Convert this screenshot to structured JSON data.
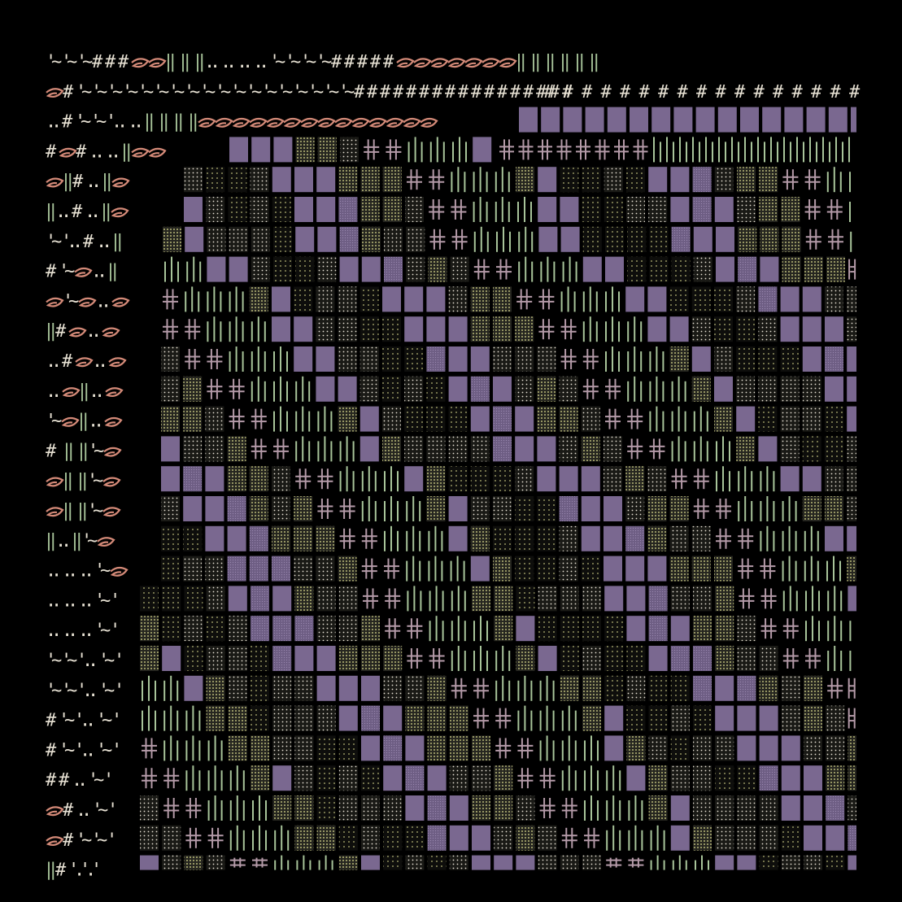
{
  "artwork": {
    "background": "#000000",
    "palette": {
      "cream": "#e8e2d4",
      "salmon": "#d48a78",
      "sage": "#a8c49a",
      "violet": "#7a6890",
      "mauve": "#b49aa8",
      "olive": "#b8b878"
    },
    "glyph_rows": [
      "'~'~'~###ⓔⓔ‖ ‖ ‖.. .. .. .. '~'~'~'~#####ⓔⓔⓔⓔⓔⓔⓔ‖ ‖ ‖ ‖ ‖ ‖",
      "ⓔ#'~'~'~'~'~'~'~'~'~'~'~'~'~'~'~'~'~'~#################",
      ".. #'~'~'.. .. ‖ ‖ ‖ ‖ⓔⓔⓔⓔⓔⓔⓔⓔⓔⓔⓔⓔⓔⓔ",
      "#ⓔ#.. .. ‖ⓔⓔ",
      "ⓔ‖#.. ‖ⓔ",
      "‖.. #.. ‖ⓔ",
      "'~'.. #.. ‖",
      "#'~ⓔ.. ‖",
      "ⓔ'~ⓔ.. ⓔ",
      "‖#ⓔ.. ⓔ",
      ".. #ⓔ.. ⓔ",
      ".. ⓔ‖.. ⓔ",
      "'~ⓔ‖.. ⓔ",
      "# ‖ ‖'~ⓔ",
      "ⓔ‖ ‖'~ⓔ",
      "ⓔ‖ ‖'~ⓔ",
      "‖.. ‖'~ⓔ",
      ".. .. .. '~ⓔ",
      ".. .. .. '~'",
      ".. .. .. '~'",
      "'~'~'.. '~'",
      "'~'~'.. '~'",
      "#'~'.. '~'",
      "#'~'.. '~'",
      "##.. '~'",
      "ⓔ#.. '~'",
      "ⓔ#'~'~'",
      "‖#'.'.'"
    ]
  }
}
